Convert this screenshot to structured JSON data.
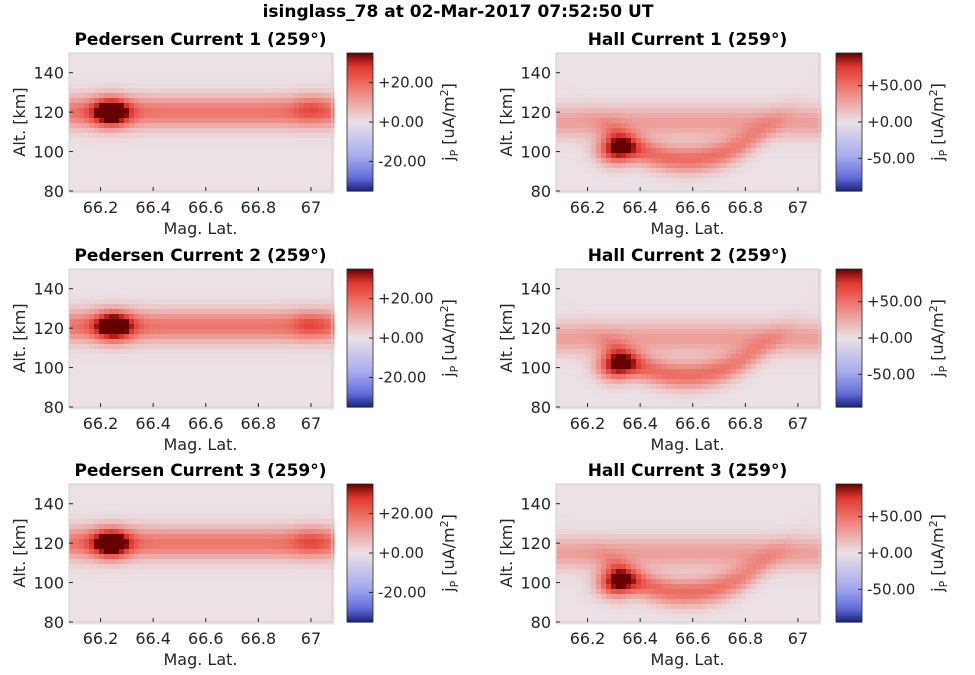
{
  "figure_title": "isinglass_78 at 02-Mar-2017 07:52:50 UT",
  "chart_data": [
    {
      "type": "heatmap",
      "title": "Pedersen Current 1 (259°)",
      "xlabel": "Mag. Lat.",
      "ylabel": "Alt. [km]",
      "colorbar_label": "jP [uA/m2]",
      "colorbar_label_parts": {
        "base": "j",
        "sub": "P",
        "unit": " [uA/m",
        "sup": "2",
        "close": "]"
      },
      "colormap": "blue-white-red (diverging)",
      "colors": {
        "low": "#1a237e",
        "mid": "#ebe1e6",
        "high": "#660000"
      },
      "xlim": [
        66.08,
        67.08
      ],
      "ylim": [
        80,
        150
      ],
      "xticks": [
        66.2,
        66.4,
        66.6,
        66.8,
        67
      ],
      "xticklabels": [
        "66.2",
        "66.4",
        "66.6",
        "66.8",
        "67"
      ],
      "yticks": [
        80,
        100,
        120,
        140
      ],
      "yticklabels": [
        "80",
        "100",
        "120",
        "140"
      ],
      "clim": [
        -35,
        35
      ],
      "cbar_ticks": [
        20,
        0,
        -20
      ],
      "cbar_ticklabels": [
        "+20.00",
        "+0.00",
        "-20.00"
      ],
      "features": [
        {
          "kind": "band",
          "peak_altitude_km": 120,
          "width_km": 8,
          "magnitude": 18
        },
        {
          "kind": "blob",
          "mag_lat": 66.24,
          "altitude_km": 120,
          "magnitude": 34
        },
        {
          "kind": "blob",
          "mag_lat": 67.0,
          "altitude_km": 122,
          "magnitude": 8
        }
      ]
    },
    {
      "type": "heatmap",
      "title": "Hall Current 1 (259°)",
      "xlabel": "Mag. Lat.",
      "ylabel": "Alt. [km]",
      "colorbar_label": "jP [uA/m2]",
      "colorbar_label_parts": {
        "base": "j",
        "sub": "P",
        "unit": " [uA/m",
        "sup": "2",
        "close": "]"
      },
      "colormap": "blue-white-red (diverging)",
      "colors": {
        "low": "#1a237e",
        "mid": "#ebe1e6",
        "high": "#660000"
      },
      "xlim": [
        66.08,
        67.08
      ],
      "ylim": [
        80,
        150
      ],
      "xticks": [
        66.2,
        66.4,
        66.6,
        66.8,
        67
      ],
      "xticklabels": [
        "66.2",
        "66.4",
        "66.6",
        "66.8",
        "67"
      ],
      "yticks": [
        80,
        100,
        120,
        140
      ],
      "yticklabels": [
        "80",
        "100",
        "120",
        "140"
      ],
      "clim": [
        -95,
        95
      ],
      "cbar_ticks": [
        50,
        0,
        -50
      ],
      "cbar_ticklabels": [
        "+50.00",
        "+0.00",
        "-50.00"
      ],
      "features": [
        {
          "kind": "band",
          "peak_altitude_km": 115,
          "width_km": 8,
          "magnitude": 30
        },
        {
          "kind": "blob",
          "mag_lat": 66.31,
          "altitude_km": 101,
          "magnitude": 92
        },
        {
          "kind": "trough",
          "mag_lat_range": [
            66.3,
            66.85
          ],
          "altitude_km": 96,
          "magnitude": 70
        }
      ]
    },
    {
      "type": "heatmap",
      "title": "Pedersen Current 2 (259°)",
      "xlabel": "Mag. Lat.",
      "ylabel": "Alt. [km]",
      "colorbar_label": "jP [uA/m2]",
      "colorbar_label_parts": {
        "base": "j",
        "sub": "P",
        "unit": " [uA/m",
        "sup": "2",
        "close": "]"
      },
      "colormap": "blue-white-red (diverging)",
      "colors": {
        "low": "#1a237e",
        "mid": "#ebe1e6",
        "high": "#660000"
      },
      "xlim": [
        66.08,
        67.08
      ],
      "ylim": [
        80,
        150
      ],
      "xticks": [
        66.2,
        66.4,
        66.6,
        66.8,
        67
      ],
      "xticklabels": [
        "66.2",
        "66.4",
        "66.6",
        "66.8",
        "67"
      ],
      "yticks": [
        80,
        100,
        120,
        140
      ],
      "yticklabels": [
        "80",
        "100",
        "120",
        "140"
      ],
      "clim": [
        -35,
        35
      ],
      "cbar_ticks": [
        20,
        0,
        -20
      ],
      "cbar_ticklabels": [
        "+20.00",
        "+0.00",
        "-20.00"
      ],
      "features": [
        {
          "kind": "band",
          "peak_altitude_km": 121,
          "width_km": 8,
          "magnitude": 18
        },
        {
          "kind": "blob",
          "mag_lat": 66.25,
          "altitude_km": 121,
          "magnitude": 34
        },
        {
          "kind": "blob",
          "mag_lat": 67.0,
          "altitude_km": 122,
          "magnitude": 8
        }
      ]
    },
    {
      "type": "heatmap",
      "title": "Hall Current 2 (259°)",
      "xlabel": "Mag. Lat.",
      "ylabel": "Alt. [km]",
      "colorbar_label": "jP [uA/m2]",
      "colorbar_label_parts": {
        "base": "j",
        "sub": "P",
        "unit": " [uA/m",
        "sup": "2",
        "close": "]"
      },
      "colormap": "blue-white-red (diverging)",
      "colors": {
        "low": "#1a237e",
        "mid": "#ebe1e6",
        "high": "#660000"
      },
      "xlim": [
        66.08,
        67.08
      ],
      "ylim": [
        80,
        150
      ],
      "xticks": [
        66.2,
        66.4,
        66.6,
        66.8,
        67
      ],
      "xticklabels": [
        "66.2",
        "66.4",
        "66.6",
        "66.8",
        "67"
      ],
      "yticks": [
        80,
        100,
        120,
        140
      ],
      "yticklabels": [
        "80",
        "100",
        "120",
        "140"
      ],
      "clim": [
        -95,
        95
      ],
      "cbar_ticks": [
        50,
        0,
        -50
      ],
      "cbar_ticklabels": [
        "+50.00",
        "+0.00",
        "-50.00"
      ],
      "features": [
        {
          "kind": "band",
          "peak_altitude_km": 115,
          "width_km": 8,
          "magnitude": 30
        },
        {
          "kind": "blob",
          "mag_lat": 66.31,
          "altitude_km": 101,
          "magnitude": 92
        },
        {
          "kind": "trough",
          "mag_lat_range": [
            66.3,
            66.85
          ],
          "altitude_km": 96,
          "magnitude": 70
        }
      ]
    },
    {
      "type": "heatmap",
      "title": "Pedersen Current 3 (259°)",
      "xlabel": "Mag. Lat.",
      "ylabel": "Alt. [km]",
      "colorbar_label": "jP [uA/m2]",
      "colorbar_label_parts": {
        "base": "j",
        "sub": "P",
        "unit": " [uA/m",
        "sup": "2",
        "close": "]"
      },
      "colormap": "blue-white-red (diverging)",
      "colors": {
        "low": "#1a237e",
        "mid": "#ebe1e6",
        "high": "#660000"
      },
      "xlim": [
        66.08,
        67.08
      ],
      "ylim": [
        80,
        150
      ],
      "xticks": [
        66.2,
        66.4,
        66.6,
        66.8,
        67
      ],
      "xticklabels": [
        "66.2",
        "66.4",
        "66.6",
        "66.8",
        "67"
      ],
      "yticks": [
        80,
        100,
        120,
        140
      ],
      "yticklabels": [
        "80",
        "100",
        "120",
        "140"
      ],
      "clim": [
        -35,
        35
      ],
      "cbar_ticks": [
        20,
        0,
        -20
      ],
      "cbar_ticklabels": [
        "+20.00",
        "+0.00",
        "-20.00"
      ],
      "features": [
        {
          "kind": "band",
          "peak_altitude_km": 120,
          "width_km": 8,
          "magnitude": 18
        },
        {
          "kind": "blob",
          "mag_lat": 66.24,
          "altitude_km": 120,
          "magnitude": 34
        },
        {
          "kind": "blob",
          "mag_lat": 67.0,
          "altitude_km": 121,
          "magnitude": 8
        }
      ]
    },
    {
      "type": "heatmap",
      "title": "Hall Current 3 (259°)",
      "xlabel": "Mag. Lat.",
      "ylabel": "Alt. [km]",
      "colorbar_label": "jP [uA/m2]",
      "colorbar_label_parts": {
        "base": "j",
        "sub": "P",
        "unit": " [uA/m",
        "sup": "2",
        "close": "]"
      },
      "colormap": "blue-white-red (diverging)",
      "colors": {
        "low": "#1a237e",
        "mid": "#ebe1e6",
        "high": "#660000"
      },
      "xlim": [
        66.08,
        67.08
      ],
      "ylim": [
        80,
        150
      ],
      "xticks": [
        66.2,
        66.4,
        66.6,
        66.8,
        67
      ],
      "xticklabels": [
        "66.2",
        "66.4",
        "66.6",
        "66.8",
        "67"
      ],
      "yticks": [
        80,
        100,
        120,
        140
      ],
      "yticklabels": [
        "80",
        "100",
        "120",
        "140"
      ],
      "clim": [
        -95,
        95
      ],
      "cbar_ticks": [
        50,
        0,
        -50
      ],
      "cbar_ticklabels": [
        "+50.00",
        "+0.00",
        "-50.00"
      ],
      "features": [
        {
          "kind": "band",
          "peak_altitude_km": 115,
          "width_km": 8,
          "magnitude": 30
        },
        {
          "kind": "blob",
          "mag_lat": 66.31,
          "altitude_km": 100,
          "magnitude": 92
        },
        {
          "kind": "trough",
          "mag_lat_range": [
            66.3,
            66.85
          ],
          "altitude_km": 95,
          "magnitude": 70
        }
      ]
    }
  ]
}
